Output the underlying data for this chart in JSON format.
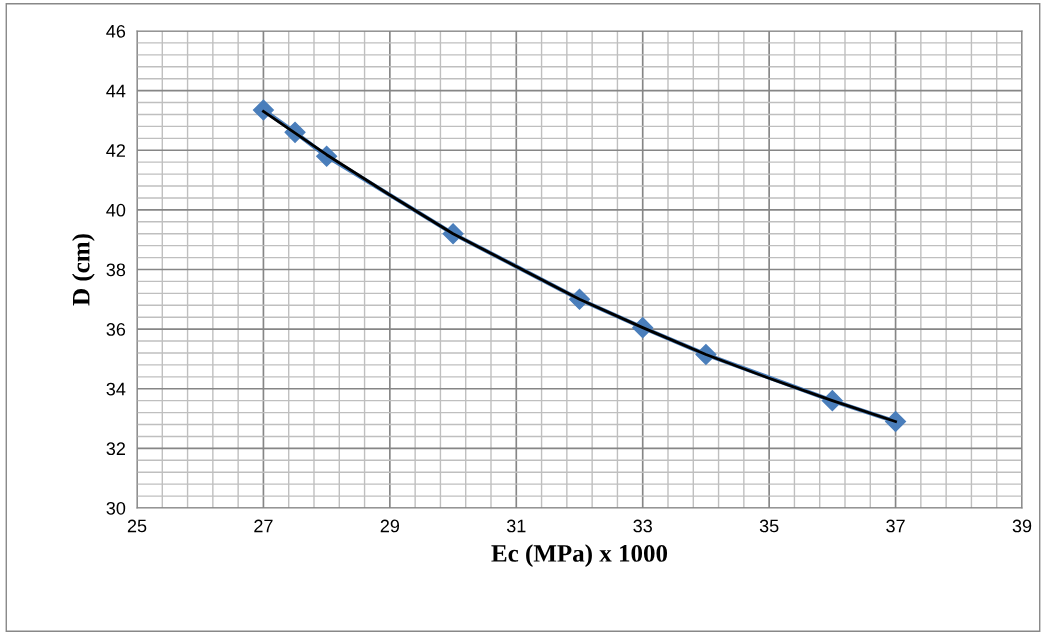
{
  "chart_data": {
    "type": "line",
    "xlabel": "Ec (MPa) x 1000",
    "ylabel": "D (cm)",
    "x": [
      27,
      27.5,
      28,
      30,
      32,
      33,
      34,
      36,
      37
    ],
    "series": [
      {
        "color": "#4a7ebb",
        "marker": "diamond",
        "values": [
          43.35,
          42.6,
          41.8,
          39.2,
          37.0,
          36.05,
          35.15,
          33.6,
          32.9
        ]
      },
      {
        "color": "#000000",
        "marker": "none",
        "x": [
          27,
          28,
          29,
          30,
          31,
          32,
          33,
          34,
          35,
          36,
          37
        ],
        "values": [
          43.3,
          41.85,
          40.5,
          39.2,
          38.1,
          37.0,
          36.05,
          35.15,
          34.35,
          33.6,
          32.9
        ]
      }
    ],
    "xlim": [
      25,
      39
    ],
    "ylim": [
      30,
      46
    ],
    "xticks": [
      25,
      {
        "value": 25.4,
        "label": null
      },
      {
        "value": 25.8,
        "label": null
      },
      {
        "value": 26.2,
        "label": null
      },
      {
        "value": 26.6,
        "label": null
      },
      27,
      {
        "value": 27.4,
        "label": null
      },
      {
        "value": 27.8,
        "label": null
      },
      {
        "value": 28.2,
        "label": null
      },
      {
        "value": 28.6,
        "label": null
      },
      29,
      {
        "value": 29.4,
        "label": null
      },
      {
        "value": 29.8,
        "label": null
      },
      {
        "value": 30.2,
        "label": null
      },
      {
        "value": 30.6,
        "label": null
      },
      31,
      {
        "value": 31.4,
        "label": null
      },
      {
        "value": 31.8,
        "label": null
      },
      {
        "value": 32.2,
        "label": null
      },
      {
        "value": 32.6,
        "label": null
      },
      33,
      {
        "value": 33.4,
        "label": null
      },
      {
        "value": 33.8,
        "label": null
      },
      {
        "value": 34.2,
        "label": null
      },
      {
        "value": 34.6,
        "label": null
      },
      35,
      {
        "value": 35.4,
        "label": null
      },
      {
        "value": 35.8,
        "label": null
      },
      {
        "value": 36.2,
        "label": null
      },
      {
        "value": 36.6,
        "label": null
      },
      37,
      {
        "value": 37.4,
        "label": null
      },
      {
        "value": 37.8,
        "label": null
      },
      {
        "value": 38.2,
        "label": null
      },
      {
        "value": 38.6,
        "label": null
      },
      39
    ],
    "yticks": [
      30,
      {
        "value": 30.4,
        "label": null
      },
      {
        "value": 30.8,
        "label": null
      },
      {
        "value": 31.2,
        "label": null
      },
      {
        "value": 31.6,
        "label": null
      },
      32,
      {
        "value": 32.4,
        "label": null
      },
      {
        "value": 32.8,
        "label": null
      },
      {
        "value": 33.2,
        "label": null
      },
      {
        "value": 33.6,
        "label": null
      },
      34,
      {
        "value": 34.4,
        "label": null
      },
      {
        "value": 34.8,
        "label": null
      },
      {
        "value": 35.2,
        "label": null
      },
      {
        "value": 35.6,
        "label": null
      },
      36,
      {
        "value": 36.4,
        "label": null
      },
      {
        "value": 36.8,
        "label": null
      },
      {
        "value": 37.2,
        "label": null
      },
      {
        "value": 37.6,
        "label": null
      },
      38,
      {
        "value": 38.4,
        "label": null
      },
      {
        "value": 38.8,
        "label": null
      },
      {
        "value": 39.2,
        "label": null
      },
      {
        "value": 39.6,
        "label": null
      },
      40,
      {
        "value": 40.4,
        "label": null
      },
      {
        "value": 40.8,
        "label": null
      },
      {
        "value": 41.2,
        "label": null
      },
      {
        "value": 41.6,
        "label": null
      },
      42,
      {
        "value": 42.4,
        "label": null
      },
      {
        "value": 42.8,
        "label": null
      },
      {
        "value": 43.2,
        "label": null
      },
      {
        "value": 43.6,
        "label": null
      },
      44,
      {
        "value": 44.4,
        "label": null
      },
      {
        "value": 44.8,
        "label": null
      },
      {
        "value": 45.2,
        "label": null
      },
      {
        "value": 45.6,
        "label": null
      },
      46
    ],
    "grid": true,
    "legend": false
  }
}
